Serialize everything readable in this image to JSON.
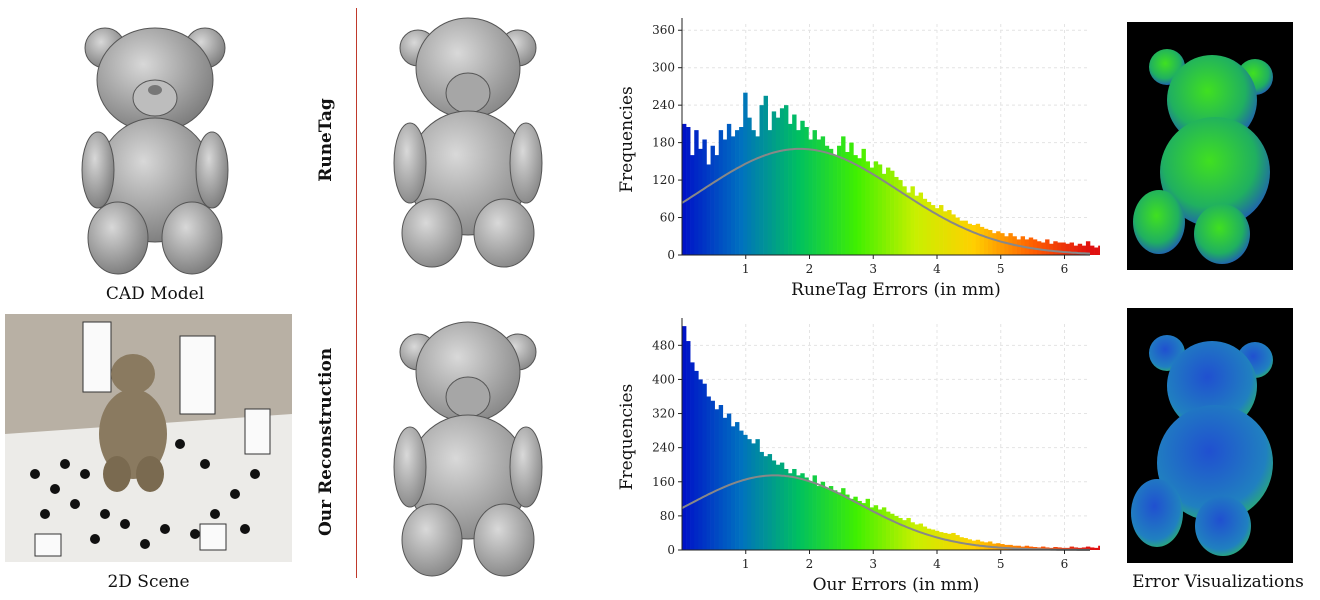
{
  "captions": {
    "cad_model": "CAD Model",
    "scene_2d": "2D Scene",
    "error_vis": "Error Visualizations"
  },
  "row_labels": {
    "top": "RuneTag",
    "bottom": "Our Reconstruction"
  },
  "colors": {
    "divider": "#c0392b",
    "fit_curve": "#888888",
    "colormap": [
      "#0010c8",
      "#0070c0",
      "#00c060",
      "#40f000",
      "#c8f000",
      "#ffd000",
      "#ff6000",
      "#e01010"
    ]
  },
  "chart_data": [
    {
      "type": "bar",
      "title": "",
      "xlabel": "RuneTag Errors (in mm)",
      "ylabel": "Frequencies",
      "xlim": [
        0,
        6.4
      ],
      "ylim": [
        0,
        370
      ],
      "xticks": [
        1,
        2,
        3,
        4,
        5,
        6
      ],
      "yticks": [
        0,
        60,
        120,
        180,
        240,
        300,
        360
      ],
      "bin_width": 0.064,
      "values": [
        210,
        205,
        160,
        200,
        170,
        185,
        145,
        175,
        160,
        200,
        185,
        210,
        190,
        200,
        205,
        260,
        220,
        200,
        190,
        240,
        255,
        200,
        230,
        220,
        235,
        240,
        210,
        225,
        200,
        215,
        205,
        185,
        200,
        185,
        190,
        175,
        170,
        160,
        175,
        190,
        165,
        180,
        160,
        155,
        170,
        150,
        140,
        150,
        145,
        130,
        140,
        135,
        125,
        120,
        110,
        100,
        110,
        95,
        100,
        90,
        85,
        80,
        75,
        80,
        70,
        72,
        65,
        60,
        55,
        55,
        50,
        48,
        50,
        45,
        42,
        40,
        35,
        38,
        35,
        30,
        35,
        30,
        25,
        30,
        25,
        28,
        25,
        22,
        20,
        25,
        18,
        22,
        20,
        20,
        18,
        20,
        15,
        18,
        15,
        22,
        15,
        12,
        15,
        10,
        14,
        10,
        12,
        15,
        10,
        12,
        8,
        12,
        10,
        8,
        10,
        12,
        8,
        10,
        6,
        8
      ],
      "fit_curve": {
        "label": "",
        "mean": 1.85,
        "peak": 170,
        "sigma": 1.55
      }
    },
    {
      "type": "bar",
      "title": "",
      "xlabel": "Our Errors (in mm)",
      "ylabel": "Frequencies",
      "xlim": [
        0,
        6.4
      ],
      "ylim": [
        0,
        530
      ],
      "xticks": [
        1,
        2,
        3,
        4,
        5,
        6
      ],
      "yticks": [
        0,
        80,
        160,
        240,
        320,
        400,
        480
      ],
      "bin_width": 0.064,
      "values": [
        525,
        490,
        440,
        420,
        400,
        390,
        360,
        350,
        330,
        340,
        310,
        320,
        290,
        300,
        280,
        270,
        260,
        250,
        260,
        230,
        220,
        225,
        210,
        200,
        205,
        190,
        180,
        190,
        175,
        180,
        170,
        160,
        175,
        150,
        160,
        145,
        150,
        140,
        135,
        145,
        130,
        120,
        125,
        115,
        110,
        120,
        100,
        105,
        95,
        100,
        90,
        85,
        80,
        75,
        70,
        75,
        65,
        60,
        62,
        55,
        50,
        48,
        45,
        42,
        40,
        38,
        40,
        35,
        30,
        28,
        25,
        22,
        24,
        20,
        18,
        20,
        15,
        16,
        14,
        12,
        12,
        10,
        10,
        8,
        10,
        8,
        7,
        6,
        8,
        6,
        5,
        7,
        6,
        5,
        5,
        8,
        6,
        5,
        6,
        8,
        6,
        5,
        10,
        8,
        6,
        10,
        8,
        12,
        10,
        8
      ],
      "fit_curve": {
        "label": "",
        "mean": 1.45,
        "peak": 175,
        "sigma": 1.35
      }
    }
  ]
}
